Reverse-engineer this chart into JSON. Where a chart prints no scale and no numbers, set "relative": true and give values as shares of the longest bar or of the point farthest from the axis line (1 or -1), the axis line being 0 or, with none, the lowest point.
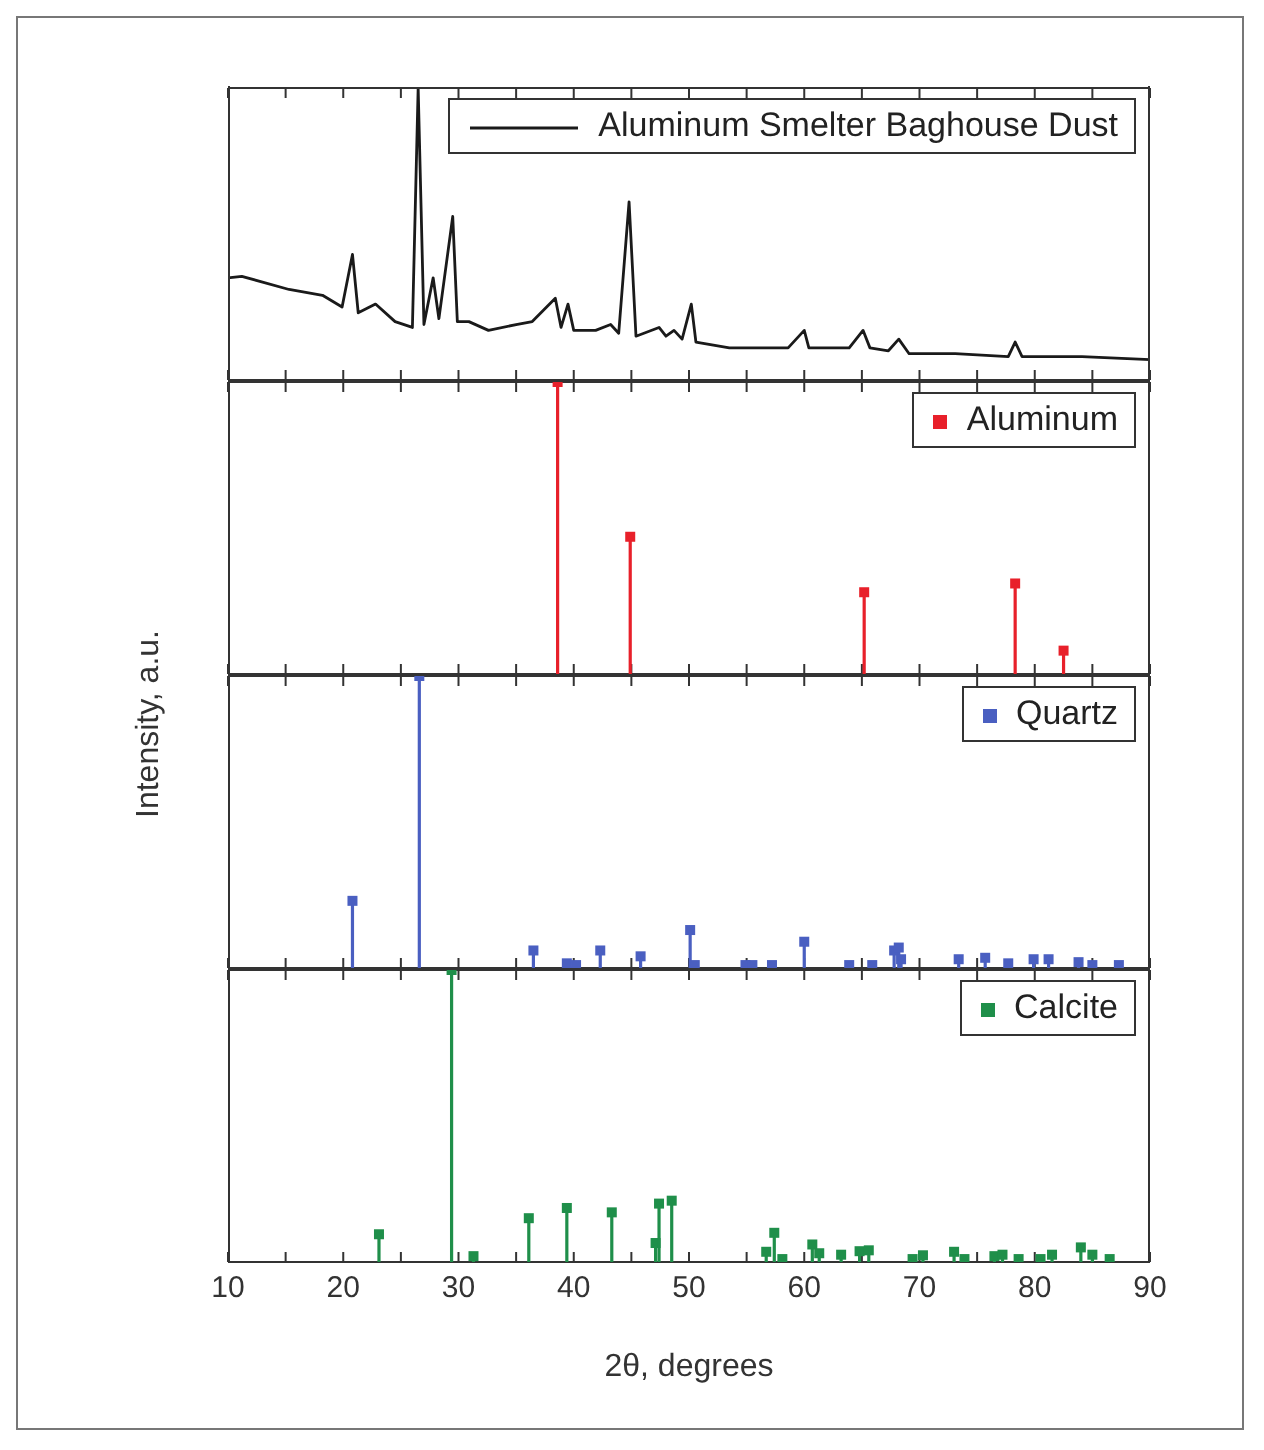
{
  "chart_data": [
    {
      "type": "line",
      "relative": true,
      "xlim": [
        10,
        90
      ],
      "xticks": [
        10,
        {
          "value": 15,
          "label": null
        },
        20,
        {
          "value": 25,
          "label": null
        },
        30,
        {
          "value": 35,
          "label": null
        },
        40,
        {
          "value": 45,
          "label": null
        },
        50,
        {
          "value": 55,
          "label": null
        },
        60,
        {
          "value": 65,
          "label": null
        },
        70,
        {
          "value": 75,
          "label": null
        },
        80,
        {
          "value": 85,
          "label": null
        },
        90
      ],
      "tick_labels": false,
      "legend": "top right",
      "line_style": "solid",
      "x": [
        10,
        11.2,
        15.3,
        18.2,
        19.9,
        20.8,
        21.3,
        22.8,
        24.5,
        26.0,
        26.5,
        27.0,
        27.8,
        28.3,
        29.5,
        29.9,
        30.9,
        32.6,
        35.0,
        36.4,
        38.4,
        38.9,
        39.5,
        40.0,
        41.9,
        43.2,
        43.9,
        44.8,
        45.4,
        47.4,
        48.0,
        48.7,
        49.4,
        50.2,
        50.6,
        53.5,
        55.8,
        58.6,
        60.0,
        60.4,
        63.9,
        65.1,
        65.7,
        67.3,
        68.2,
        69.1,
        73.1,
        77.7,
        78.3,
        78.9,
        84.1,
        90
      ],
      "series": [
        {
          "name": "Aluminum Smelter Baghouse Dust",
          "color": "#1a1a1a",
          "values": [
            0.35,
            0.355,
            0.31,
            0.29,
            0.25,
            0.43,
            0.23,
            0.26,
            0.2,
            0.18,
            1,
            0.19,
            0.35,
            0.21,
            0.56,
            0.2,
            0.2,
            0.17,
            0.19,
            0.2,
            0.28,
            0.18,
            0.26,
            0.17,
            0.17,
            0.19,
            0.16,
            0.61,
            0.15,
            0.18,
            0.15,
            0.17,
            0.14,
            0.26,
            0.13,
            0.11,
            0.11,
            0.11,
            0.17,
            0.11,
            0.11,
            0.17,
            0.11,
            0.1,
            0.14,
            0.09,
            0.09,
            0.08,
            0.13,
            0.08,
            0.08,
            0.07
          ]
        }
      ]
    },
    {
      "type": "lollipop",
      "relative": true,
      "xlim": [
        10,
        90
      ],
      "xticks": [
        10,
        {
          "value": 15,
          "label": null
        },
        20,
        {
          "value": 25,
          "label": null
        },
        30,
        {
          "value": 35,
          "label": null
        },
        40,
        {
          "value": 45,
          "label": null
        },
        50,
        {
          "value": 55,
          "label": null
        },
        60,
        {
          "value": 65,
          "label": null
        },
        70,
        {
          "value": 75,
          "label": null
        },
        80,
        {
          "value": 85,
          "label": null
        },
        90
      ],
      "tick_labels": false,
      "legend": "top right",
      "marker": "square",
      "x": [
        38.6,
        44.9,
        65.2,
        78.3,
        82.5
      ],
      "series": [
        {
          "name": "Aluminum",
          "color": "#e8202a",
          "values": [
            1,
            0.47,
            0.28,
            0.31,
            0.08
          ]
        }
      ]
    },
    {
      "type": "lollipop",
      "ylabel": "Intensity, a.u.",
      "relative": true,
      "xlim": [
        10,
        90
      ],
      "xticks": [
        10,
        {
          "value": 15,
          "label": null
        },
        20,
        {
          "value": 25,
          "label": null
        },
        30,
        {
          "value": 35,
          "label": null
        },
        40,
        {
          "value": 45,
          "label": null
        },
        50,
        {
          "value": 55,
          "label": null
        },
        60,
        {
          "value": 65,
          "label": null
        },
        70,
        {
          "value": 75,
          "label": null
        },
        80,
        {
          "value": 85,
          "label": null
        },
        90
      ],
      "tick_labels": false,
      "legend": "top right",
      "marker": "square",
      "x": [
        20.8,
        26.6,
        36.5,
        39.4,
        40.2,
        42.3,
        45.8,
        50.1,
        50.5,
        54.9,
        55.5,
        57.2,
        60.0,
        63.9,
        65.9,
        67.8,
        68.2,
        68.4,
        73.4,
        75.7,
        77.7,
        79.9,
        81.2,
        83.8,
        85.0,
        87.3
      ],
      "series": [
        {
          "name": "Quartz",
          "color": "#4a5fc1",
          "values": [
            0.23,
            1,
            0.06,
            0.016,
            0.01,
            0.06,
            0.04,
            0.13,
            0.01,
            0.01,
            0.01,
            0.01,
            0.09,
            0.01,
            0.01,
            0.06,
            0.07,
            0.03,
            0.03,
            0.035,
            0.016,
            0.03,
            0.03,
            0.02,
            0.01,
            0.01
          ]
        }
      ]
    },
    {
      "type": "lollipop",
      "xlabel": "2θ, degrees",
      "relative": true,
      "xlim": [
        10,
        90
      ],
      "xticks": [
        10,
        {
          "value": 15,
          "label": null
        },
        20,
        {
          "value": 25,
          "label": null
        },
        30,
        {
          "value": 35,
          "label": null
        },
        40,
        {
          "value": 45,
          "label": null
        },
        50,
        {
          "value": 55,
          "label": null
        },
        60,
        {
          "value": 65,
          "label": null
        },
        70,
        {
          "value": 75,
          "label": null
        },
        80,
        {
          "value": 85,
          "label": null
        },
        90
      ],
      "tick_labels": "x",
      "legend": "top right",
      "marker": "square",
      "x": [
        23.1,
        29.4,
        31.3,
        36.1,
        39.4,
        43.3,
        47.1,
        47.4,
        48.5,
        56.7,
        57.4,
        58.1,
        60.7,
        61.3,
        63.2,
        64.8,
        65.6,
        69.4,
        70.3,
        73.0,
        73.9,
        76.5,
        77.2,
        78.6,
        80.5,
        81.5,
        84.0,
        85.0,
        86.5
      ],
      "series": [
        {
          "name": "Calcite",
          "color": "#1f8f4a",
          "values": [
            0.095,
            1,
            0.02,
            0.15,
            0.185,
            0.17,
            0.065,
            0.2,
            0.21,
            0.035,
            0.1,
            0.01,
            0.06,
            0.03,
            0.025,
            0.037,
            0.04,
            0.01,
            0.023,
            0.035,
            0.01,
            0.02,
            0.025,
            0.01,
            0.01,
            0.025,
            0.05,
            0.025,
            0.01
          ]
        }
      ]
    }
  ]
}
